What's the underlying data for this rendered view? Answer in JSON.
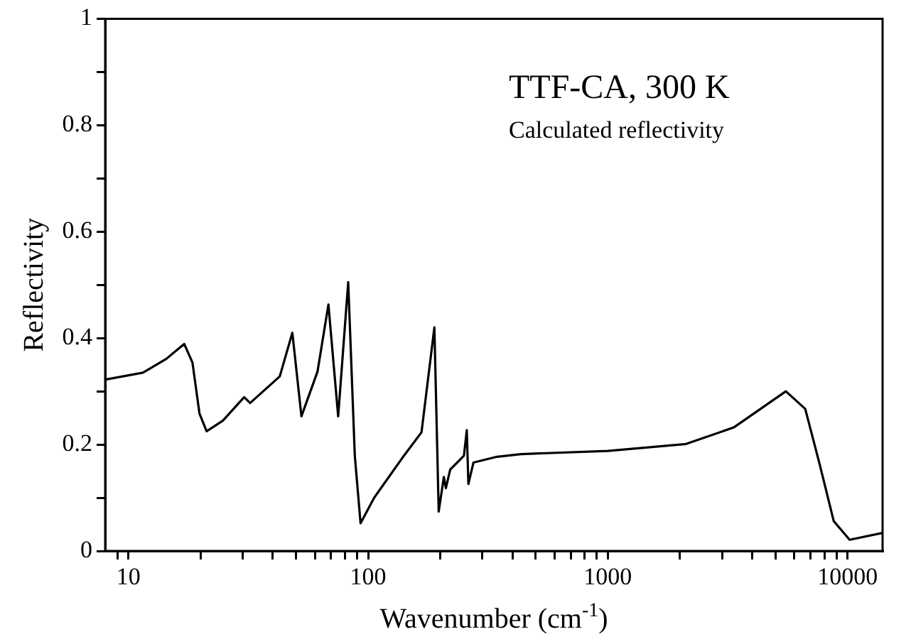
{
  "chart_data": {
    "type": "line",
    "xlabel": "Wavenumber (cm$^{-1}$)",
    "ylabel": "Reflectivity",
    "annotations": [
      "TTF-CA, 300 K",
      "Calculated reflectivity"
    ],
    "log": "x",
    "xlim": [
      8,
      14000
    ],
    "ylim": [
      0,
      1
    ],
    "xticks": [
      {
        "value": 9,
        "label": null
      },
      10,
      {
        "value": 20,
        "label": null
      },
      {
        "value": 30,
        "label": null
      },
      {
        "value": 40,
        "label": null
      },
      {
        "value": 50,
        "label": null
      },
      {
        "value": 60,
        "label": null
      },
      {
        "value": 70,
        "label": null
      },
      {
        "value": 80,
        "label": null
      },
      {
        "value": 90,
        "label": null
      },
      100,
      {
        "value": 200,
        "label": null
      },
      {
        "value": 300,
        "label": null
      },
      {
        "value": 400,
        "label": null
      },
      {
        "value": 500,
        "label": null
      },
      {
        "value": 600,
        "label": null
      },
      {
        "value": 700,
        "label": null
      },
      {
        "value": 800,
        "label": null
      },
      {
        "value": 900,
        "label": null
      },
      1000,
      {
        "value": 2000,
        "label": null
      },
      {
        "value": 3000,
        "label": null
      },
      {
        "value": 4000,
        "label": null
      },
      {
        "value": 5000,
        "label": null
      },
      {
        "value": 6000,
        "label": null
      },
      {
        "value": 7000,
        "label": null
      },
      {
        "value": 8000,
        "label": null
      },
      {
        "value": 9000,
        "label": null
      },
      10000
    ],
    "yticks": [
      0,
      {
        "value": 0.1,
        "label": null
      },
      0.2,
      {
        "value": 0.3,
        "label": null
      },
      0.4,
      {
        "value": 0.5,
        "label": null
      },
      0.6,
      {
        "value": 0.7,
        "label": null
      },
      0.8,
      {
        "value": 0.9,
        "label": null
      },
      1
    ],
    "grid": false,
    "legend": false,
    "marker": "none",
    "line_style": "solid",
    "series": [
      {
        "color": "#000000",
        "x": [
          8,
          11.5,
          14.4,
          17.1,
          18.5,
          19.8,
          21.2,
          24.8,
          30.4,
          32.2,
          42.8,
          48.3,
          52.7,
          61.5,
          68.3,
          75,
          82.6,
          88,
          93,
          106,
          139,
          167,
          189,
          197,
          207,
          211,
          220,
          251,
          258,
          262,
          275,
          345,
          434,
          1000,
          2120,
          3350,
          5530,
          6660,
          7670,
          8760,
          10200,
          14000
        ],
        "values": [
          0.322,
          0.335,
          0.361,
          0.389,
          0.354,
          0.258,
          0.225,
          0.245,
          0.289,
          0.278,
          0.328,
          0.41,
          0.253,
          0.337,
          0.463,
          0.253,
          0.505,
          0.179,
          0.052,
          0.1,
          0.175,
          0.223,
          0.42,
          0.074,
          0.139,
          0.118,
          0.153,
          0.179,
          0.227,
          0.126,
          0.166,
          0.177,
          0.182,
          0.188,
          0.201,
          0.232,
          0.3,
          0.267,
          0.161,
          0.056,
          0.021,
          0.034
        ]
      }
    ]
  }
}
